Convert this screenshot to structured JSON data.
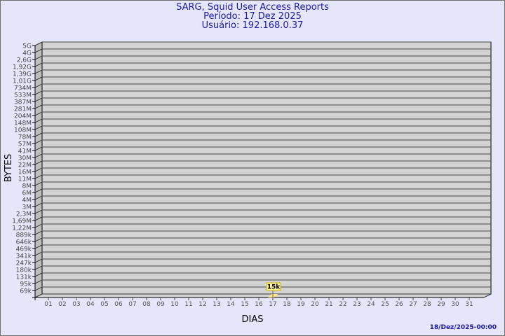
{
  "chart_data": {
    "type": "bar",
    "title": "SARG, Squid User Access Reports",
    "subtitle": [
      "Período: 17 Dez 2025",
      "Usuário: 192.168.0.37"
    ],
    "xlabel": "DIAS",
    "ylabel": "BYTES",
    "yscale": "log",
    "ytick_labels": [
      "5G",
      "4G",
      "2,6G",
      "1,92G",
      "1,39G",
      "1,01G",
      "734M",
      "533M",
      "387M",
      "281M",
      "204M",
      "148M",
      "108M",
      "78M",
      "57M",
      "41M",
      "30M",
      "22M",
      "16M",
      "11M",
      "8M",
      "6M",
      "4M",
      "3M",
      "2,3M",
      "1,69M",
      "1,22M",
      "889k",
      "646k",
      "469k",
      "341k",
      "247k",
      "180k",
      "131k",
      "95k",
      "69k"
    ],
    "categories": [
      "01",
      "02",
      "03",
      "04",
      "05",
      "06",
      "07",
      "08",
      "09",
      "10",
      "11",
      "12",
      "13",
      "14",
      "15",
      "16",
      "17",
      "18",
      "19",
      "20",
      "21",
      "22",
      "23",
      "24",
      "25",
      "26",
      "27",
      "28",
      "29",
      "30",
      "31"
    ],
    "series": [
      {
        "values": {
          "17": "15k"
        }
      }
    ],
    "data_labels": [
      {
        "day": "17",
        "label": "15k"
      }
    ],
    "grid": true,
    "footer": "18/Dez/2025-00:00",
    "colors": {
      "background": "#e6e6fa",
      "plot": "#d3d3d3",
      "bar": "#ffe680",
      "title": "#1a1aa6"
    }
  }
}
